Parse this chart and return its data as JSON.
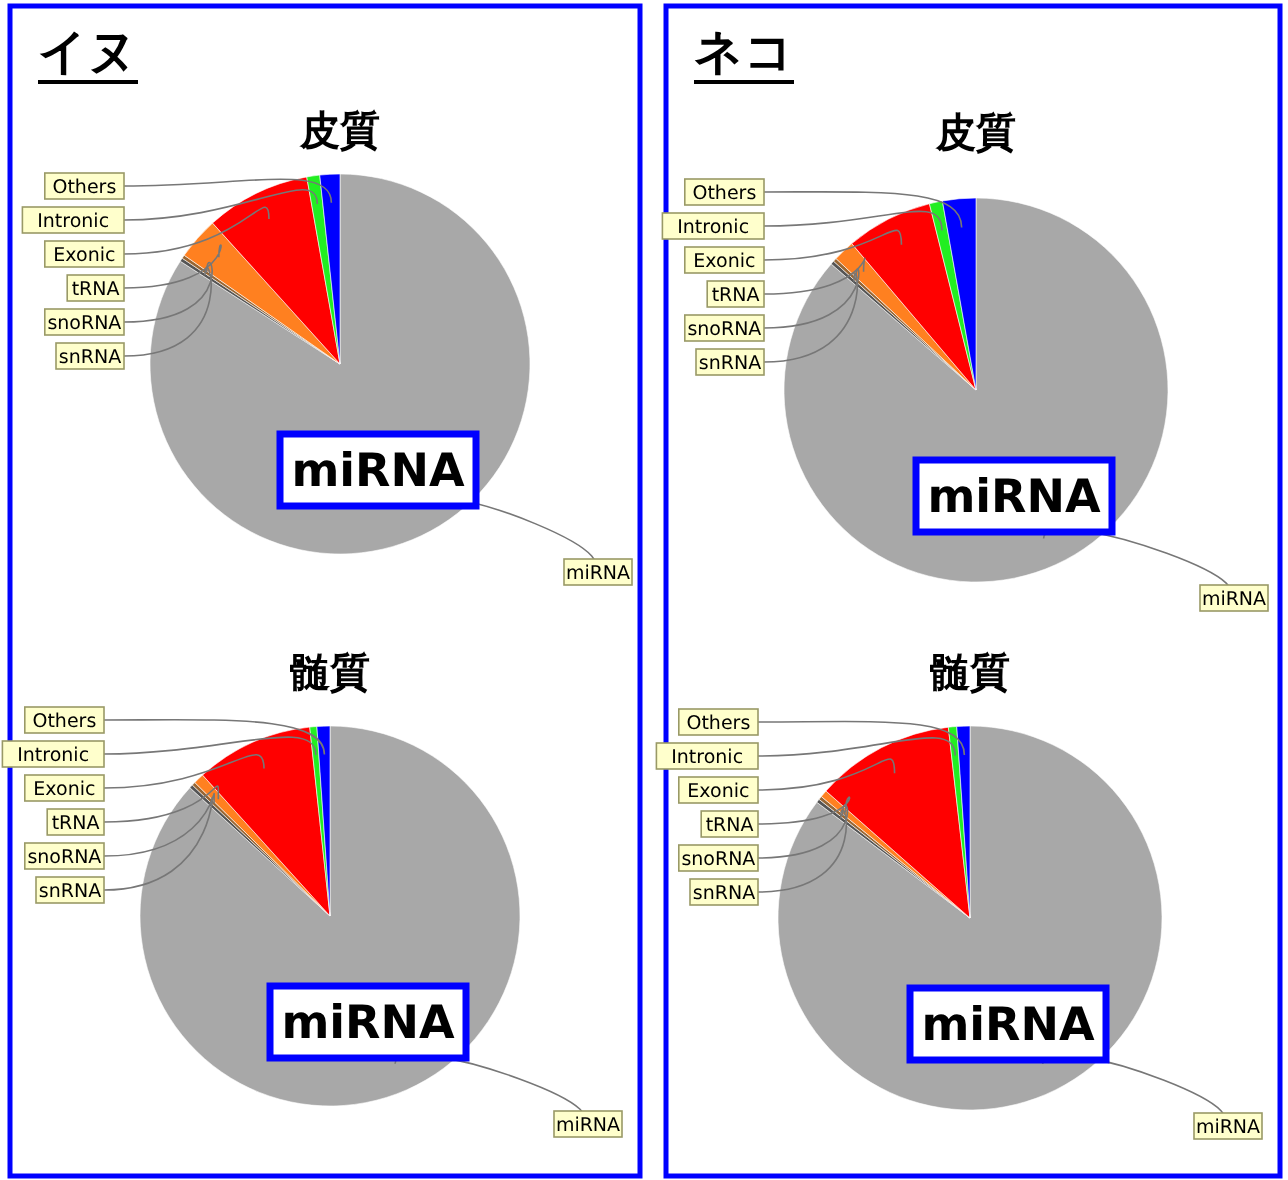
{
  "chart_data": [
    {
      "type": "pie",
      "title": "皮質",
      "annotations": [
        "イヌ",
        "miRNA"
      ],
      "categories": [
        "miRNA",
        "snRNA",
        "snoRNA",
        "tRNA",
        "Exonic",
        "Intronic",
        "Others"
      ],
      "values": [
        84.1,
        0.3,
        0.3,
        3.6,
        8.9,
        1.1,
        1.7
      ],
      "colors": [
        "#a8a8a8",
        "#555555",
        "#996633",
        "#ff8020",
        "#ff0000",
        "#22ee22",
        "#0000ff"
      ]
    },
    {
      "type": "pie",
      "title": "髄質",
      "annotations": [
        "miRNA"
      ],
      "categories": [
        "miRNA",
        "snRNA",
        "snoRNA",
        "tRNA",
        "Exonic",
        "Intronic",
        "Others"
      ],
      "values": [
        86.8,
        0.3,
        0.3,
        0.9,
        10.0,
        0.6,
        1.1
      ],
      "colors": [
        "#a8a8a8",
        "#555555",
        "#996633",
        "#ff8020",
        "#ff0000",
        "#22ee22",
        "#0000ff"
      ]
    },
    {
      "type": "pie",
      "title": "皮質",
      "annotations": [
        "ネコ",
        "miRNA"
      ],
      "categories": [
        "miRNA",
        "snRNA",
        "snoRNA",
        "tRNA",
        "Exonic",
        "Intronic",
        "Others"
      ],
      "values": [
        86.4,
        0.3,
        0.3,
        1.8,
        7.3,
        1.1,
        2.8
      ],
      "colors": [
        "#a8a8a8",
        "#555555",
        "#996633",
        "#ff8020",
        "#ff0000",
        "#22ee22",
        "#0000ff"
      ]
    },
    {
      "type": "pie",
      "title": "髄質",
      "annotations": [
        "miRNA"
      ],
      "categories": [
        "miRNA",
        "snRNA",
        "snoRNA",
        "tRNA",
        "Exonic",
        "Intronic",
        "Others"
      ],
      "values": [
        85.3,
        0.3,
        0.3,
        0.6,
        11.7,
        0.7,
        1.1
      ],
      "colors": [
        "#a8a8a8",
        "#555555",
        "#996633",
        "#ff8020",
        "#ff0000",
        "#22ee22",
        "#0000ff"
      ]
    }
  ]
}
